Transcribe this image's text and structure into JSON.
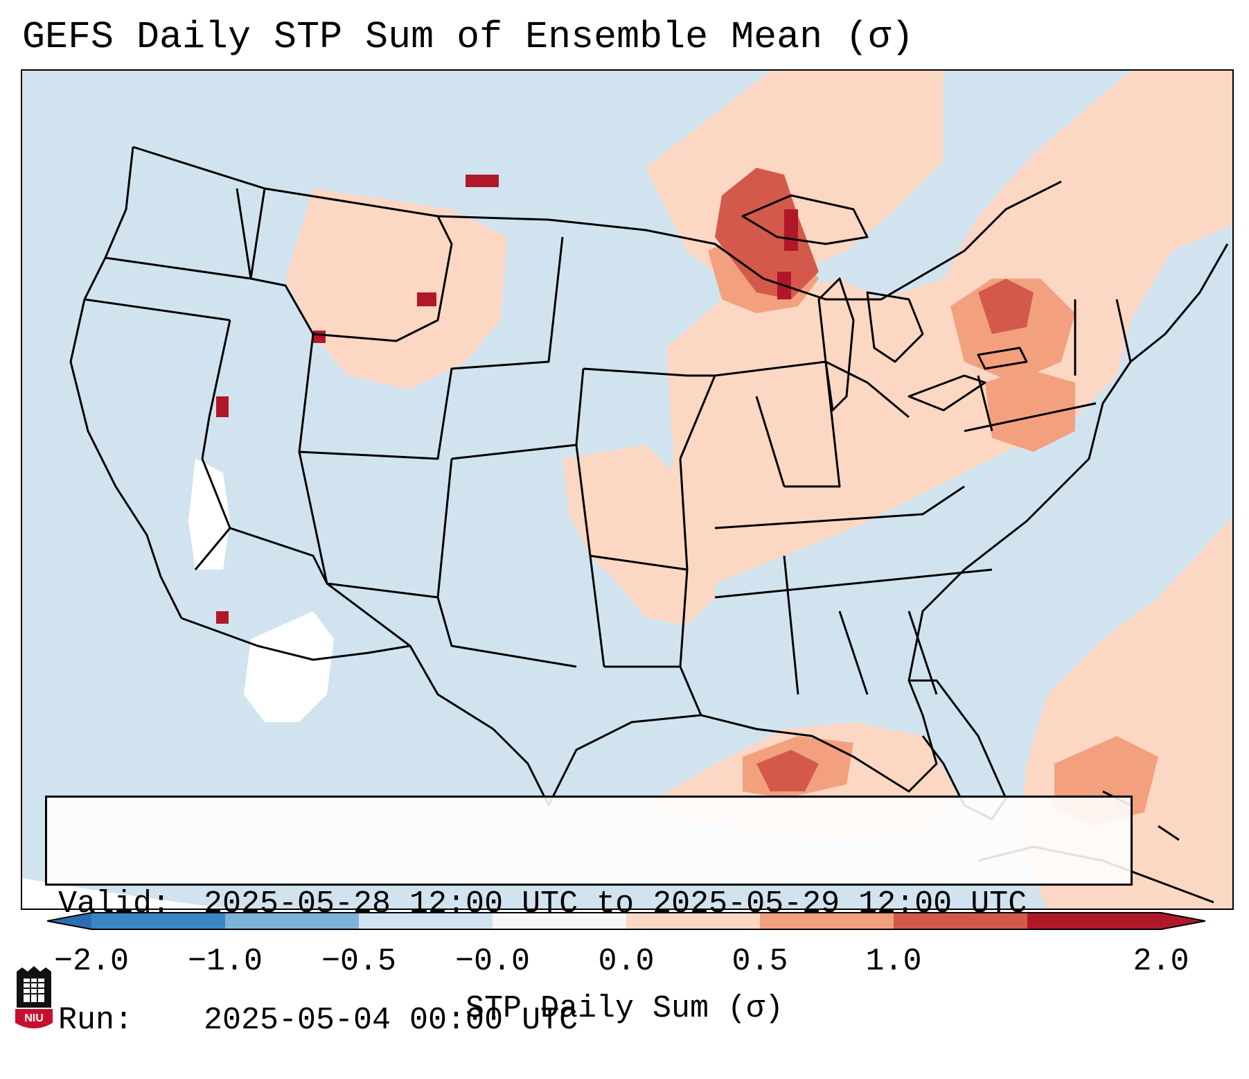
{
  "title": "GEFS Daily STP Sum of Ensemble Mean (σ)",
  "info": {
    "valid_label": "Valid:",
    "valid_value": "2025-05-28 12:00 UTC to 2025-05-29 12:00 UTC",
    "run_label": "Run:",
    "run_value": "2025-05-04 00:00 UTC"
  },
  "colorbar": {
    "label": "STP Daily Sum (σ)",
    "ticks": [
      "−2.0",
      "−1.0",
      "−0.5",
      "−0.0",
      "0.0",
      "0.5",
      "1.0",
      "2.0"
    ],
    "segment_colors": [
      "#3a86c2",
      "#7cb4d8",
      "#d1e3ef",
      "#f5f7f9",
      "#fbd7c4",
      "#f3a07f",
      "#d35a4b",
      "#b0182a"
    ],
    "under_color": "#2a6fb0",
    "over_color": "#b0182a"
  },
  "colors": {
    "background": "#d1e3ef",
    "low": "#fbd7c4",
    "mid": "#f3a07f",
    "high": "#d35a4b",
    "extreme": "#b0182a",
    "white_area": "#ffffff"
  },
  "logo": {
    "text": "NIU",
    "icon": "niu-logo-icon"
  }
}
